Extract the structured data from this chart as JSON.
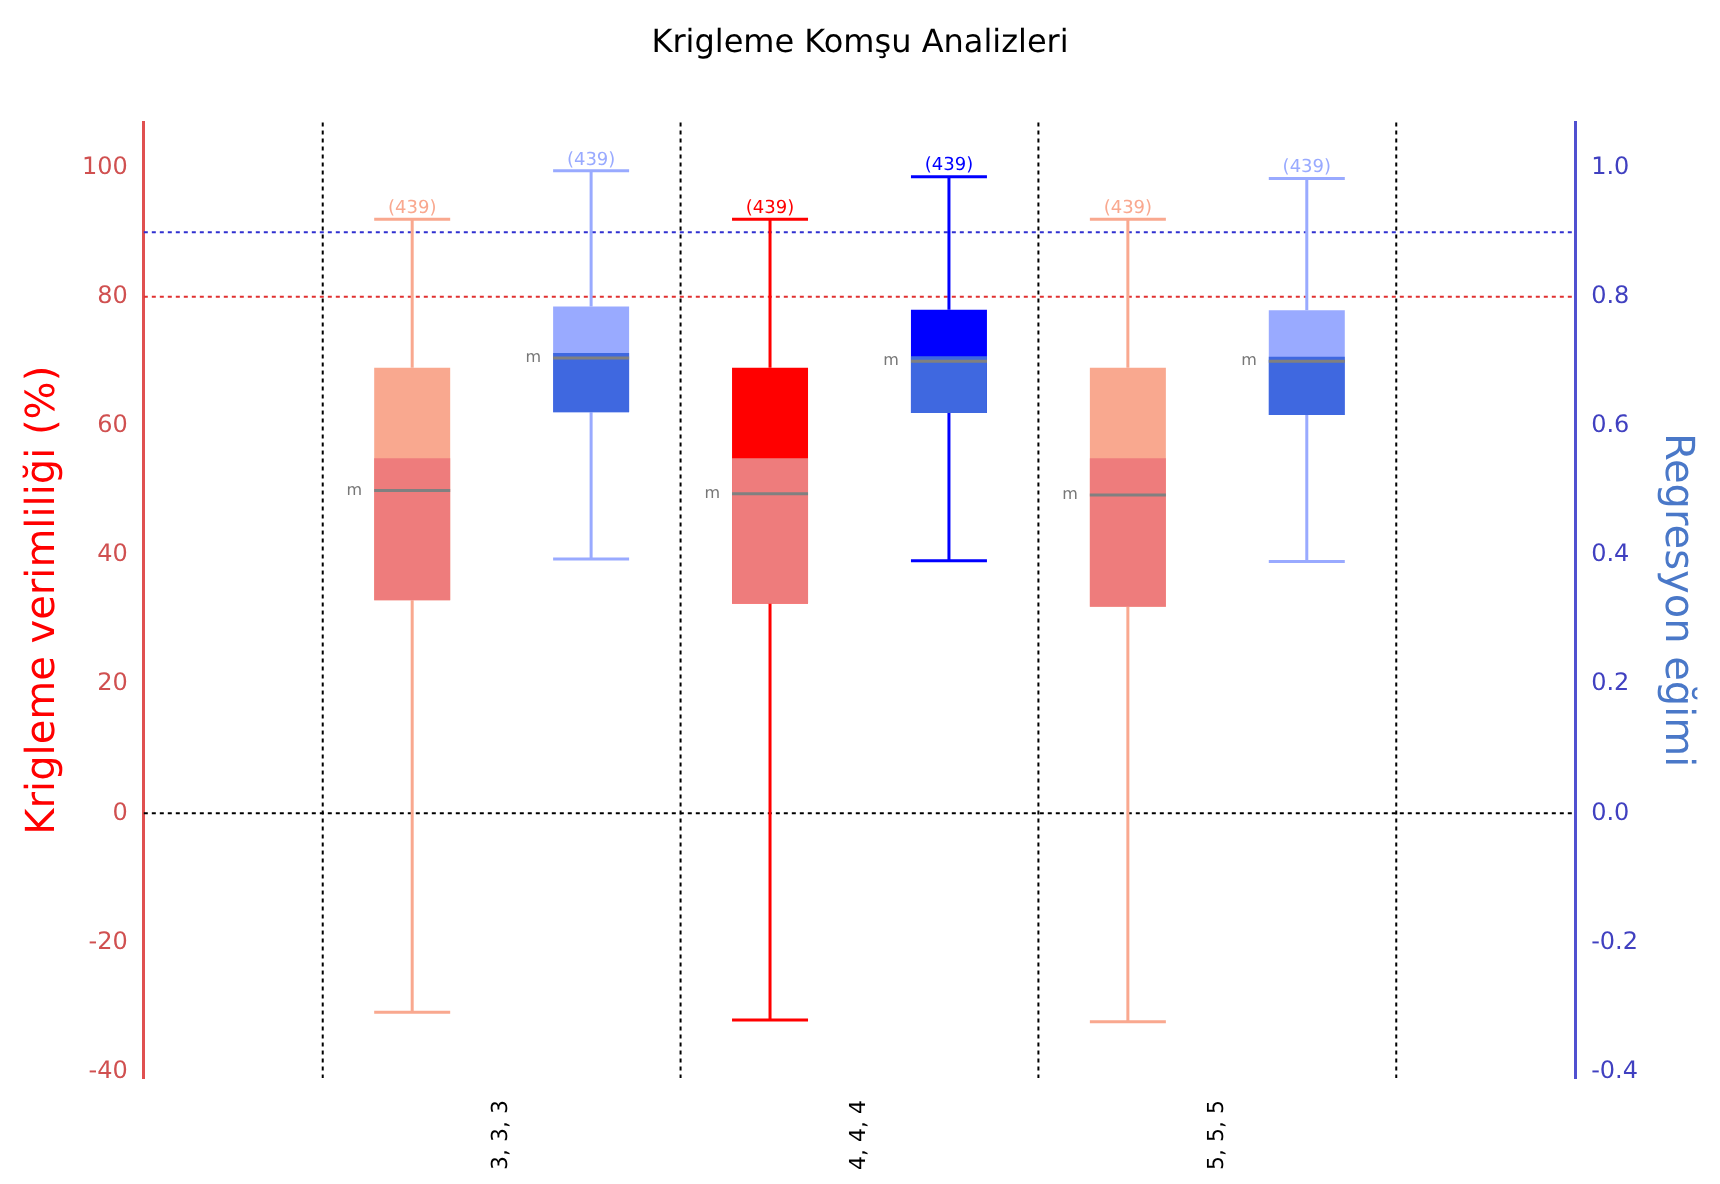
{
  "chart_data": {
    "type": "box",
    "title": "Krigleme Komşu Analizleri",
    "ylabel": "Krigleme verimliliği (%)",
    "y2label": "Regresyon eğimi",
    "categories": [
      "3, 3, 3",
      "4, 4, 4",
      "5, 5, 5"
    ],
    "ylim": [
      -41,
      107
    ],
    "yticks": [
      -40,
      -20,
      0,
      20,
      40,
      60,
      80,
      100
    ],
    "y2lim": [
      -0.41,
      1.07
    ],
    "y2ticks": [
      {
        "value": -0.4,
        "label": "-0.4"
      },
      {
        "value": -0.2,
        "label": "-0.2"
      },
      {
        "value": 0,
        "label": "0.0"
      },
      {
        "value": 0.2,
        "label": "0.2"
      },
      {
        "value": 0.4,
        "label": "0.4"
      },
      {
        "value": 0.6,
        "label": "0.6"
      },
      {
        "value": 0.8,
        "label": "0.8"
      },
      {
        "value": 1.0,
        "label": "1.0"
      }
    ],
    "series": [
      {
        "color": "#ee7c7c",
        "colors": [
          "#f9a88f",
          "#ff0000",
          "#f9a88f"
        ],
        "value_labels": [
          "(439)",
          "(439)",
          "(439)"
        ],
        "boxes": [
          {
            "low": -30.8,
            "q1": 33,
            "median": 55,
            "q3": 69,
            "high": 92,
            "mean": 50
          },
          {
            "low": -32,
            "q1": 32.5,
            "median": 55,
            "q3": 69,
            "high": 92,
            "mean": 49.5
          },
          {
            "low": -32.3,
            "q1": 32,
            "median": 55,
            "q3": 69,
            "high": 92,
            "mean": 49.3
          }
        ]
      },
      {
        "axis": "y2",
        "color": "#3f68e0",
        "colors": [
          "#99aaff",
          "#0000ff",
          "#99aaff"
        ],
        "value_labels": [
          "(439)",
          "(439)",
          "(439)"
        ],
        "boxes": [
          {
            "low": 0.394,
            "q1": 0.621,
            "median": 0.713,
            "q3": 0.785,
            "high": 0.995,
            "mean": 0.705
          },
          {
            "low": 0.391,
            "q1": 0.62,
            "median": 0.708,
            "q3": 0.78,
            "high": 0.986,
            "mean": 0.7
          },
          {
            "low": 0.39,
            "q1": 0.617,
            "median": 0.707,
            "q3": 0.779,
            "high": 0.983,
            "mean": 0.7
          }
        ]
      }
    ],
    "ref_lines": [
      {
        "axis": "y",
        "value": 80,
        "color": "#e03030",
        "line_style": "dotted"
      },
      {
        "axis": "y2",
        "value": 0.9,
        "color": "#3030d0",
        "line_style": "dotted"
      },
      {
        "axis": "y",
        "value": 0,
        "color": "#000000",
        "line_style": "dotted"
      }
    ],
    "annotations": [
      "m",
      "m",
      "m",
      "m",
      "m",
      "m"
    ],
    "grid": "x",
    "legend": false
  }
}
